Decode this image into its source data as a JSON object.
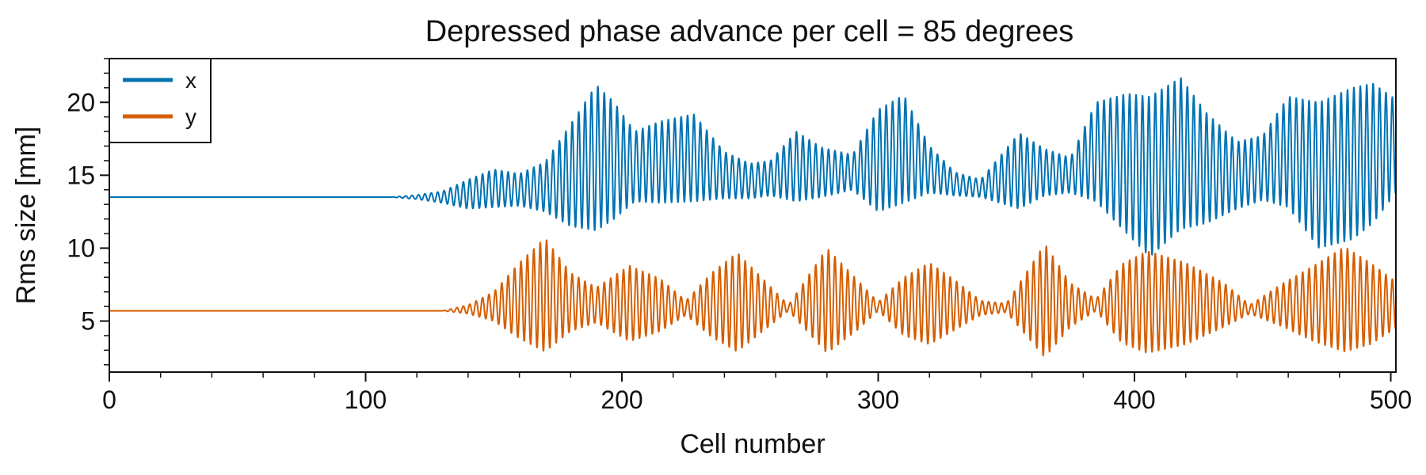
{
  "chart_data": {
    "type": "line",
    "title": "Depressed phase advance per cell = 85 degrees",
    "xlabel": "Cell number",
    "ylabel": "Rms size [mm]",
    "xlim": [
      0,
      502
    ],
    "ylim": [
      1.5,
      23
    ],
    "xticks": [
      0,
      100,
      200,
      300,
      400,
      500
    ],
    "xtick_labels": [
      "0",
      "100",
      "200",
      "300",
      "400",
      "500"
    ],
    "yticks": [
      5,
      10,
      15,
      20
    ],
    "ytick_labels": [
      "5",
      "10",
      "15",
      "20"
    ],
    "x_minor_step": 20,
    "y_minor_step": 1,
    "grid": false,
    "legend_position": "top-left",
    "series": [
      {
        "name": "x",
        "color": "#0072b2",
        "baseline": 13.5,
        "period_cells": 2.5,
        "envelope": [
          [
            0,
            13.5,
            0
          ],
          [
            110,
            13.5,
            0
          ],
          [
            120,
            13.5,
            0.15
          ],
          [
            130,
            13.5,
            0.4
          ],
          [
            140,
            13.7,
            1
          ],
          [
            150,
            14.1,
            1.3
          ],
          [
            160,
            14,
            1.1
          ],
          [
            170,
            14.2,
            1.7
          ],
          [
            180,
            15,
            3.5
          ],
          [
            190,
            16.2,
            5
          ],
          [
            197,
            16,
            4
          ],
          [
            205,
            15.6,
            2.4
          ],
          [
            215,
            15.9,
            2.8
          ],
          [
            228,
            16.2,
            3
          ],
          [
            240,
            15,
            1.6
          ],
          [
            250,
            14.6,
            1.2
          ],
          [
            258,
            14.8,
            1.2
          ],
          [
            268,
            15.6,
            2.4
          ],
          [
            278,
            15.2,
            1.7
          ],
          [
            290,
            15.2,
            1.2
          ],
          [
            300,
            16,
            3.5
          ],
          [
            310,
            16.8,
            3.7
          ],
          [
            320,
            15.4,
            1.6
          ],
          [
            330,
            14.4,
            0.8
          ],
          [
            340,
            14.1,
            0.6
          ],
          [
            355,
            15.3,
            2.6
          ],
          [
            365,
            15.2,
            1.6
          ],
          [
            375,
            15,
            1.2
          ],
          [
            385,
            16.6,
            3.4
          ],
          [
            397,
            15.8,
            4.8
          ],
          [
            406,
            14.9,
            5.5
          ],
          [
            418,
            16.5,
            5.2
          ],
          [
            428,
            15.5,
            3.8
          ],
          [
            440,
            15,
            2.3
          ],
          [
            450,
            15.5,
            2.2
          ],
          [
            460,
            16.6,
            3.8
          ],
          [
            472,
            15,
            5
          ],
          [
            485,
            15.8,
            5.2
          ],
          [
            493,
            16.5,
            4.8
          ],
          [
            502,
            17,
            3.2
          ]
        ]
      },
      {
        "name": "y",
        "color": "#d55e00",
        "baseline": 5.7,
        "period_cells": 2.5,
        "envelope": [
          [
            0,
            5.7,
            0
          ],
          [
            130,
            5.7,
            0
          ],
          [
            140,
            5.8,
            0.3
          ],
          [
            150,
            6,
            1
          ],
          [
            160,
            6.4,
            2.6
          ],
          [
            170,
            6.8,
            3.9
          ],
          [
            180,
            6.3,
            2
          ],
          [
            190,
            6.1,
            1.2
          ],
          [
            203,
            6.2,
            2.6
          ],
          [
            215,
            6.1,
            1.8
          ],
          [
            225,
            5.9,
            0.5
          ],
          [
            235,
            6.1,
            2.2
          ],
          [
            245,
            6.3,
            3.4
          ],
          [
            255,
            6.1,
            1.8
          ],
          [
            265,
            5.9,
            0.2
          ],
          [
            280,
            6.4,
            3.6
          ],
          [
            292,
            6.1,
            1.7
          ],
          [
            300,
            6,
            0.3
          ],
          [
            310,
            6,
            2
          ],
          [
            320,
            6.2,
            2.8
          ],
          [
            330,
            6.1,
            1.7
          ],
          [
            340,
            5.9,
            0.5
          ],
          [
            350,
            5.9,
            0.3
          ],
          [
            365,
            6.4,
            3.9
          ],
          [
            375,
            6.1,
            1.5
          ],
          [
            385,
            6.1,
            0.4
          ],
          [
            395,
            6.2,
            2.7
          ],
          [
            405,
            6.3,
            3.5
          ],
          [
            420,
            6.2,
            2.8
          ],
          [
            435,
            6.1,
            1.5
          ],
          [
            445,
            5.8,
            0.3
          ],
          [
            458,
            6.1,
            1.5
          ],
          [
            470,
            6.2,
            2.6
          ],
          [
            482,
            6.5,
            3.6
          ],
          [
            492,
            6.2,
            2.8
          ],
          [
            502,
            6.1,
            1.6
          ]
        ]
      }
    ]
  }
}
